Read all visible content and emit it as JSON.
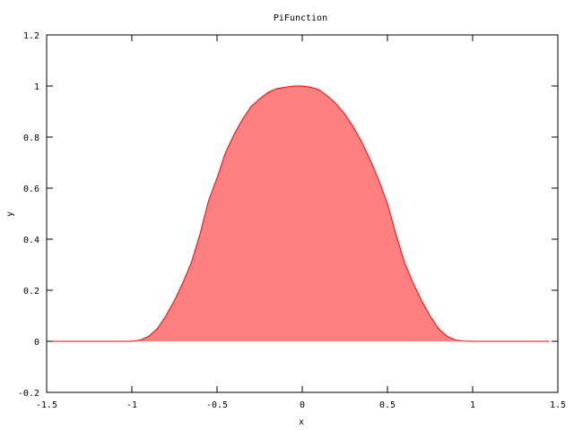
{
  "chart_data": {
    "type": "area",
    "title": "PiFunction",
    "xlabel": "x",
    "ylabel": "y",
    "xlim": [
      -1.5,
      1.5
    ],
    "ylim": [
      -0.2,
      1.2
    ],
    "xticks": [
      "-1.5",
      "-1",
      "-0.5",
      "0",
      "0.5",
      "1",
      "1.5"
    ],
    "yticks": [
      "-0.2",
      "0",
      "0.2",
      "0.4",
      "0.6",
      "0.8",
      "1",
      "1.2"
    ],
    "grid": false,
    "legend": "none",
    "fill_color": "#ff8080",
    "line_color": "#ff0000",
    "series": [
      {
        "x": [
          -1.5,
          -1.4,
          -1.3,
          -1.2,
          -1.1,
          -1.0,
          -0.95,
          -0.9,
          -0.85,
          -0.8,
          -0.75,
          -0.7,
          -0.65,
          -0.6,
          -0.55,
          -0.5,
          -0.45,
          -0.4,
          -0.35,
          -0.3,
          -0.25,
          -0.2,
          -0.15,
          -0.1,
          -0.05,
          0.0,
          0.05,
          0.1,
          0.15,
          0.2,
          0.25,
          0.3,
          0.35,
          0.4,
          0.45,
          0.5,
          0.55,
          0.6,
          0.65,
          0.7,
          0.75,
          0.8,
          0.85,
          0.9,
          0.95,
          1.0,
          1.1,
          1.2,
          1.3,
          1.45
        ],
        "y": [
          0,
          0,
          0,
          0,
          0,
          0,
          0.005,
          0.02,
          0.05,
          0.1,
          0.16,
          0.23,
          0.31,
          0.42,
          0.55,
          0.64,
          0.74,
          0.81,
          0.87,
          0.92,
          0.95,
          0.975,
          0.99,
          0.995,
          1.0,
          1.0,
          0.995,
          0.985,
          0.96,
          0.93,
          0.89,
          0.84,
          0.78,
          0.71,
          0.63,
          0.54,
          0.42,
          0.31,
          0.23,
          0.16,
          0.1,
          0.05,
          0.02,
          0.005,
          0.001,
          0,
          0,
          0,
          0,
          0
        ]
      }
    ]
  }
}
